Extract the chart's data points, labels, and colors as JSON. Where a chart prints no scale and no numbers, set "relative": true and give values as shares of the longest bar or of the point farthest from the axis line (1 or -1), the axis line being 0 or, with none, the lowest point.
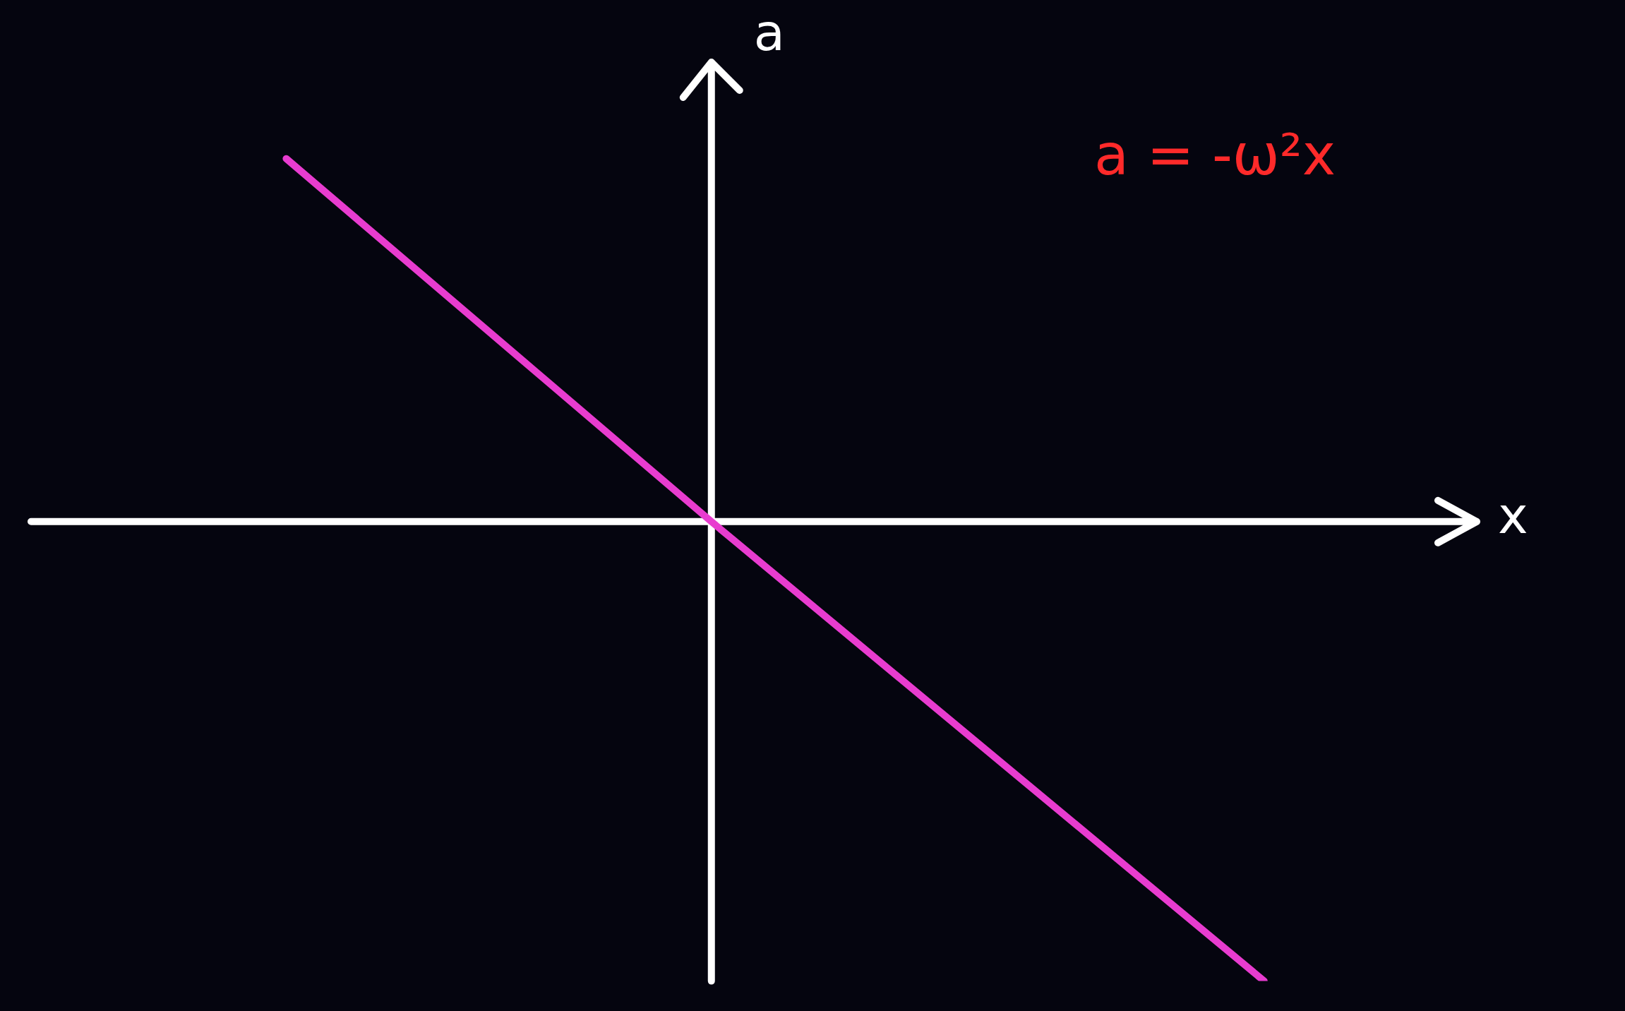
{
  "chart_data": {
    "type": "line",
    "relative": true,
    "xlabel": "x",
    "ylabel": "a",
    "annotations": [
      "a = -ω²x"
    ],
    "categories": [
      null,
      null,
      null,
      null,
      null,
      null,
      null,
      null,
      null,
      null,
      null,
      null,
      null,
      null,
      null,
      null,
      null,
      null,
      null,
      null,
      null,
      null,
      null,
      null,
      null,
      null,
      null,
      null,
      null,
      null,
      null,
      null,
      null,
      null,
      null
    ],
    "series": [
      {
        "color": "#e83ccf",
        "values": [
          null,
          null,
          null,
          null,
          null,
          null,
          0.79,
          null,
          null,
          null,
          null,
          null,
          null,
          null,
          null,
          null,
          0,
          null,
          null,
          null,
          null,
          null,
          null,
          null,
          null,
          null,
          null,
          null,
          null,
          -1,
          null,
          null,
          null,
          null,
          null
        ]
      }
    ],
    "grid": false,
    "legend": false,
    "marker": "none",
    "line_style": "solid"
  }
}
